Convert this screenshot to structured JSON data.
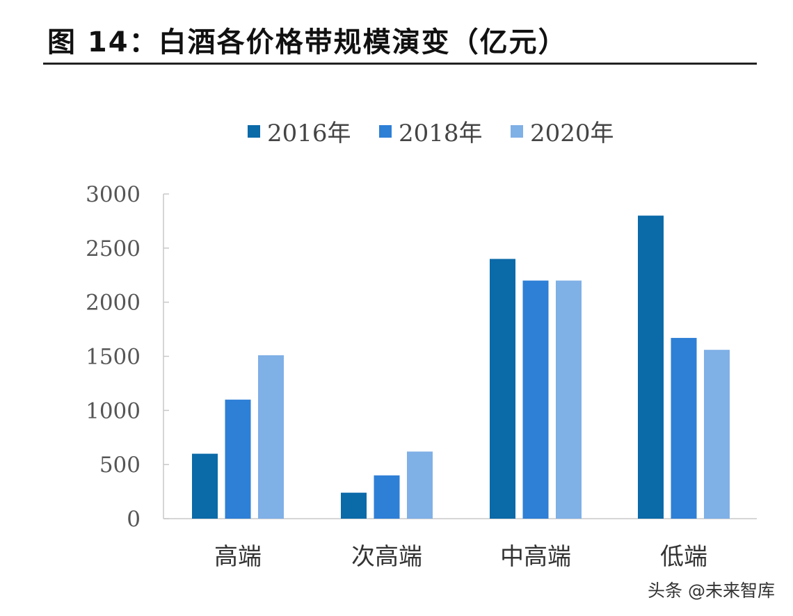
{
  "title": "图  14：白酒各价格带规模演变（亿元）",
  "watermark": "头条 @未来智库",
  "colors": {
    "s2016": "#0b6aa8",
    "s2018": "#2e7fd6",
    "s2020": "#7fb0e6",
    "axis": "#c8c8c8",
    "tick": "#555555"
  },
  "chart_data": {
    "type": "bar",
    "categories": [
      "高端",
      "次高端",
      "中高端",
      "低端"
    ],
    "series": [
      {
        "name": "2016年",
        "values": [
          600,
          240,
          2400,
          2800
        ]
      },
      {
        "name": "2018年",
        "values": [
          1100,
          400,
          2200,
          1670
        ]
      },
      {
        "name": "2020年",
        "values": [
          1510,
          620,
          2200,
          1560
        ]
      }
    ],
    "ylim": [
      0,
      3000
    ],
    "yticks": [
      0,
      500,
      1000,
      1500,
      2000,
      2500,
      3000
    ],
    "legend_position": "top",
    "grid": false
  }
}
